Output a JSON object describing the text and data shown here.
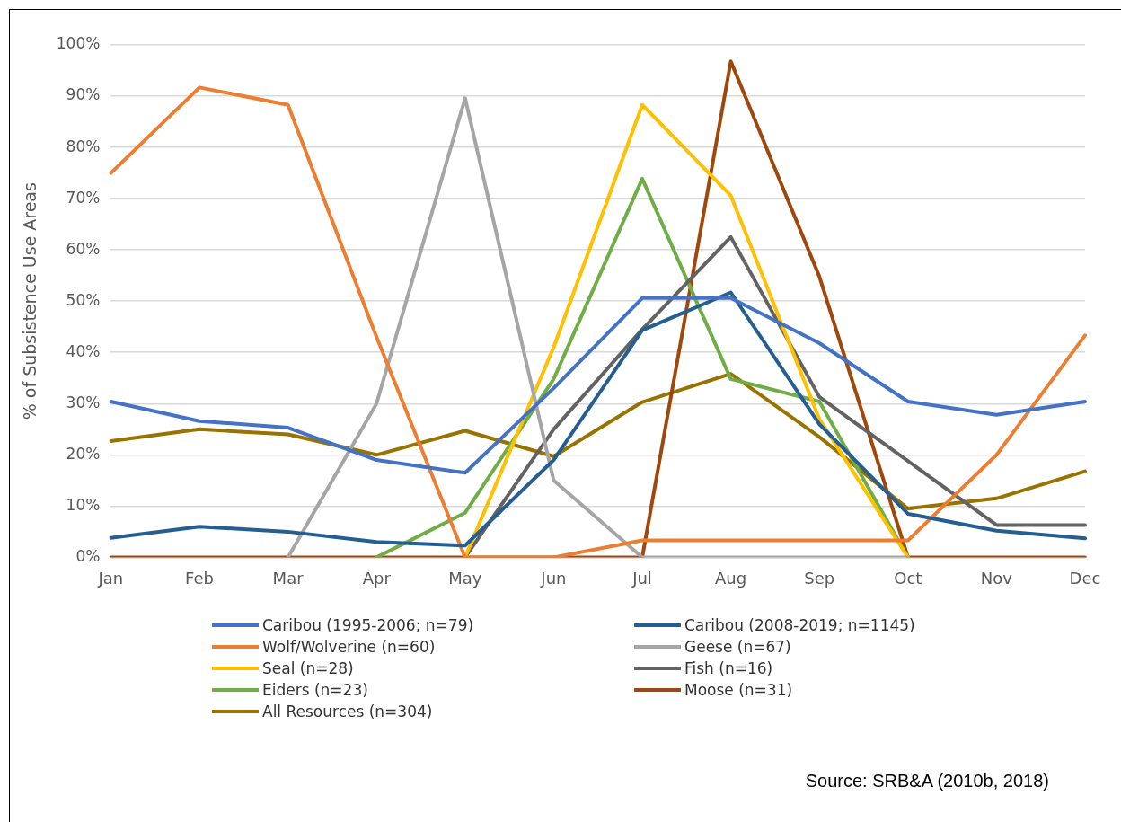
{
  "chart_data": {
    "type": "line",
    "ylabel": "% of Subsistence Use Areas",
    "categories": [
      "Jan",
      "Feb",
      "Mar",
      "Apr",
      "May",
      "Jun",
      "Jul",
      "Aug",
      "Sep",
      "Oct",
      "Nov",
      "Dec"
    ],
    "ylim": [
      0,
      100
    ],
    "yticks": [
      {
        "value": 0,
        "label": "0%"
      },
      {
        "value": 10,
        "label": "10%"
      },
      {
        "value": 20,
        "label": "20%"
      },
      {
        "value": 30,
        "label": "30%"
      },
      {
        "value": 40,
        "label": "40%"
      },
      {
        "value": 50,
        "label": "50%"
      },
      {
        "value": 60,
        "label": "60%"
      },
      {
        "value": 70,
        "label": "70%"
      },
      {
        "value": 80,
        "label": "80%"
      },
      {
        "value": 90,
        "label": "90%"
      },
      {
        "value": 100,
        "label": "100%"
      }
    ],
    "grid": "y",
    "legend": "bottom",
    "marker": "none",
    "line_style": "solid",
    "series": [
      {
        "name": "Caribou (1995-2006; n=79)",
        "color": "#4472c4",
        "values": [
          30.4,
          26.6,
          25.3,
          19,
          16.5,
          33,
          50.6,
          50.6,
          41.8,
          30.4,
          27.8,
          30.4
        ]
      },
      {
        "name": "Caribou (2008-2019; n=1145)",
        "color": "#255e91",
        "values": [
          3.8,
          6,
          5,
          3,
          2.3,
          19,
          44.3,
          51.7,
          26,
          8.5,
          5.2,
          3.7
        ]
      },
      {
        "name": "Wolf/Wolverine (n=60)",
        "color": "#ed7d31",
        "values": [
          75,
          91.7,
          88.3,
          43,
          0,
          0,
          3.3,
          3.3,
          3.3,
          3.3,
          20,
          43.3
        ]
      },
      {
        "name": "Geese (n=67)",
        "color": "#a5a5a5",
        "values": [
          null,
          null,
          0,
          30,
          89.6,
          15,
          0,
          0,
          0,
          0,
          null,
          null
        ]
      },
      {
        "name": "Seal (n=28)",
        "color": "#ffc000",
        "values": [
          null,
          null,
          null,
          null,
          0,
          41,
          88.3,
          70.6,
          27,
          0,
          null,
          null
        ]
      },
      {
        "name": "Fish (n=16)",
        "color": "#636363",
        "values": [
          null,
          null,
          null,
          null,
          0,
          25,
          44.5,
          62.5,
          31.3,
          18.8,
          6.3,
          6.3
        ]
      },
      {
        "name": "Eiders (n=23)",
        "color": "#70ad47",
        "values": [
          null,
          null,
          null,
          0,
          8.7,
          34.8,
          73.9,
          34.8,
          30.4,
          0,
          null,
          null
        ]
      },
      {
        "name": "Moose (n=31)",
        "color": "#9e480e",
        "values": [
          0,
          0,
          0,
          0,
          0,
          0,
          0,
          96.8,
          54.8,
          0,
          0,
          0
        ]
      },
      {
        "name": "All Resources (n=304)",
        "color": "#997300",
        "values": [
          22.7,
          25,
          24,
          20,
          24.7,
          19.7,
          30.3,
          35.8,
          23.5,
          9.5,
          11.5,
          16.8
        ]
      }
    ],
    "annotations": [
      "Source: SRB&A (2010b, 2018)"
    ]
  }
}
